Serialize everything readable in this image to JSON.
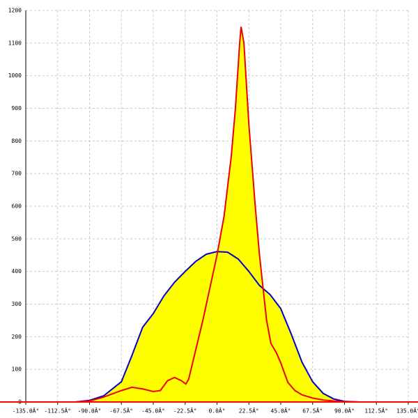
{
  "chart_data": {
    "type": "area",
    "xlim": [
      -135,
      135
    ],
    "ylim": [
      0,
      1200
    ],
    "xticks": [
      {
        "value": -135,
        "label": "-135.0Â°"
      },
      {
        "value": -112.5,
        "label": "-112.5Â°"
      },
      {
        "value": -90,
        "label": "-90.0Â°"
      },
      {
        "value": -67.5,
        "label": "-67.5Â°"
      },
      {
        "value": -45,
        "label": "-45.0Â°"
      },
      {
        "value": -22.5,
        "label": "-22.5Â°"
      },
      {
        "value": 0,
        "label": "0.0Â°"
      },
      {
        "value": 22.5,
        "label": "22.5Â°"
      },
      {
        "value": 45,
        "label": "45.0Â°"
      },
      {
        "value": 67.5,
        "label": "67.5Â°"
      },
      {
        "value": 90,
        "label": "90.0Â°"
      },
      {
        "value": 112.5,
        "label": "112.5Â°"
      },
      {
        "value": 135,
        "label": "135.0Â°"
      }
    ],
    "yticks": [
      0,
      100,
      200,
      300,
      400,
      500,
      600,
      700,
      800,
      900,
      1000,
      1100,
      1200
    ],
    "grid": true,
    "fill": "#ffff00",
    "axis_color": "#ff0000",
    "series": [
      {
        "color": "#0000cc",
        "x": [
          -100,
          -90,
          -80,
          -67.5,
          -60,
          -52.5,
          -45,
          -37.5,
          -30,
          -22.5,
          -15,
          -7.5,
          0,
          7.5,
          15,
          22.5,
          30,
          37.5,
          45,
          52.5,
          60,
          67.5,
          75,
          82.5,
          90,
          100
        ],
        "values": [
          0,
          5,
          19,
          62,
          143,
          229,
          271,
          325,
          367,
          400,
          431,
          453,
          461,
          459,
          438,
          400,
          357,
          329,
          286,
          207,
          122,
          62,
          26,
          9,
          2,
          0
        ]
      },
      {
        "color": "#ee0000",
        "x": [
          -100,
          -90,
          -80,
          -67.5,
          -60,
          -52.5,
          -45,
          -40,
          -35,
          -30,
          -25,
          -22,
          -20,
          -15,
          -10,
          -5,
          0,
          5,
          10,
          13,
          16,
          17,
          19,
          22.5,
          27,
          30,
          35,
          38,
          42,
          45,
          50,
          55,
          60,
          67.5,
          75,
          82.5,
          90,
          100
        ],
        "values": [
          0,
          3,
          15,
          35,
          45,
          40,
          32,
          35,
          65,
          75,
          65,
          55,
          70,
          160,
          250,
          350,
          450,
          570,
          750,
          900,
          1100,
          1150,
          1100,
          850,
          600,
          450,
          250,
          180,
          150,
          120,
          60,
          35,
          22,
          12,
          6,
          3,
          1,
          0
        ]
      }
    ]
  }
}
